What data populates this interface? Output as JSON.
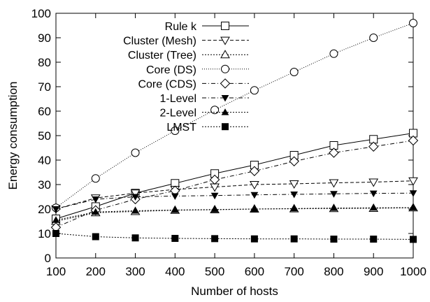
{
  "chart_data": {
    "type": "line",
    "title": "",
    "xlabel": "Number of hosts",
    "ylabel": "Energy consumption",
    "x": [
      100,
      200,
      300,
      400,
      500,
      600,
      700,
      800,
      900,
      1000
    ],
    "xlim": [
      100,
      1000
    ],
    "ylim": [
      0,
      100
    ],
    "xticks": [
      "100",
      "200",
      "300",
      "400",
      "500",
      "600",
      "700",
      "800",
      "900",
      "1000"
    ],
    "yticks": [
      "0",
      "10",
      "20",
      "30",
      "40",
      "50",
      "60",
      "70",
      "80",
      "90",
      "100"
    ],
    "grid": false,
    "legend_position": "top-left",
    "series": [
      {
        "name": "Rule k",
        "marker": "square-open",
        "dash": "solid",
        "values": [
          16,
          21,
          26.5,
          30.5,
          34.5,
          38,
          42,
          46,
          48.5,
          51
        ]
      },
      {
        "name": "Cluster (Mesh)",
        "marker": "triangle-down-open",
        "dash": "dash",
        "values": [
          20,
          24.5,
          26.5,
          28,
          29,
          30,
          30.3,
          30.7,
          31,
          31.5
        ]
      },
      {
        "name": "Cluster (Tree)",
        "marker": "triangle-up-open",
        "dash": "dot",
        "values": [
          15,
          18.5,
          19,
          19.5,
          19.7,
          20,
          20.1,
          20.2,
          20.3,
          20.5
        ]
      },
      {
        "name": "Core (DS)",
        "marker": "circle-open",
        "dash": "finedot",
        "values": [
          20.5,
          32.5,
          43,
          52,
          60.5,
          68.5,
          76,
          83.5,
          90,
          96
        ]
      },
      {
        "name": "Core (CDS)",
        "marker": "diamond-open",
        "dash": "dashdot",
        "values": [
          12.5,
          19.5,
          24,
          27.5,
          32,
          35.5,
          39.5,
          43,
          45.5,
          48
        ]
      },
      {
        "name": "1-Level",
        "marker": "triangle-down-filled",
        "dash": "dashdot",
        "values": [
          20,
          24,
          25,
          25.3,
          25.5,
          25.8,
          26,
          26.2,
          26.4,
          26.5
        ]
      },
      {
        "name": "2-Level",
        "marker": "triangle-up-filled",
        "dash": "dot",
        "values": [
          15.5,
          18.8,
          19.3,
          19.6,
          19.8,
          20,
          20.2,
          20.4,
          20.5,
          20.6
        ]
      },
      {
        "name": "LMST",
        "marker": "square-filled",
        "dash": "dot",
        "values": [
          10,
          8.7,
          8.2,
          8,
          7.9,
          7.8,
          7.8,
          7.7,
          7.7,
          7.6
        ]
      }
    ]
  }
}
